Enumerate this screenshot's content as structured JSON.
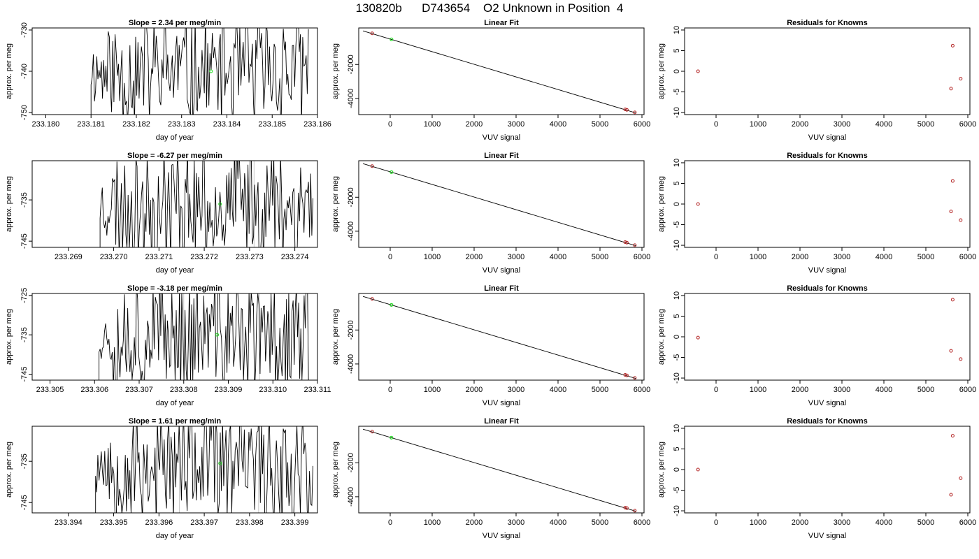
{
  "figure": {
    "title": "130820b      D743654    O2 Unknown in Position  4"
  },
  "colors": {
    "trace": "#000000",
    "fit_line": "#000000",
    "known_point": "#b22222",
    "unknown_point": "#22dd22",
    "ref_line": "#c8c8c8"
  },
  "chart_data": [
    {
      "type": "line",
      "row": 0,
      "col": 0,
      "title": "Slope =  2.34  per meg/min",
      "xlabel": "day of year",
      "ylabel": "approx. per meg",
      "xlim": [
        233.1797,
        233.186
      ],
      "ylim": [
        -750.5,
        -729.5
      ],
      "xticks": [
        233.18,
        233.181,
        233.182,
        233.183,
        233.184,
        233.185,
        233.186
      ],
      "xtick_labels": [
        "233.180",
        "233.181",
        "233.182",
        "233.183",
        "233.184",
        "233.185",
        "233.186"
      ],
      "yticks": [
        -730,
        -740,
        -750
      ],
      "ytick_labels": [
        "-730",
        "-740",
        "-750"
      ],
      "trace_start": 233.181,
      "trace_end": 233.1858,
      "trace_seed": 11,
      "trace_center": -740,
      "marker": {
        "x": 233.18365,
        "y": -740
      },
      "ref_lines": []
    },
    {
      "type": "scatter",
      "row": 0,
      "col": 1,
      "title": "Linear Fit",
      "xlabel": "VUV signal",
      "ylabel": "approx. per meg",
      "xlim": [
        -750,
        6050
      ],
      "ylim": [
        -4950,
        150
      ],
      "xticks": [
        0,
        1000,
        2000,
        3000,
        4000,
        5000,
        6000
      ],
      "xtick_labels": [
        "0",
        "1000",
        "2000",
        "3000",
        "4000",
        "5000",
        "6000"
      ],
      "yticks": [
        -2000,
        -4000
      ],
      "ytick_labels": [
        "-2000",
        "-4000"
      ],
      "fit_line": {
        "x": [
          -650,
          5850
        ],
        "y": [
          -20,
          -4850
        ]
      },
      "knowns": {
        "x": [
          -430,
          5600,
          5640,
          5830
        ],
        "y": [
          -170,
          -4640,
          -4670,
          -4820
        ]
      },
      "unknown": {
        "x": 30,
        "y": -520
      }
    },
    {
      "type": "scatter",
      "row": 0,
      "col": 2,
      "title": "Residuals for Knowns",
      "xlabel": "VUV signal",
      "ylabel": "approx. per meg",
      "xlim": [
        -750,
        6050
      ],
      "ylim": [
        -10.5,
        10.5
      ],
      "xticks": [
        0,
        1000,
        2000,
        3000,
        4000,
        5000,
        6000
      ],
      "xtick_labels": [
        "0",
        "1000",
        "2000",
        "3000",
        "4000",
        "5000",
        "6000"
      ],
      "yticks": [
        10,
        5,
        0,
        -5,
        -10
      ],
      "ytick_labels": [
        "10",
        "5",
        "0",
        "-5",
        "-10"
      ],
      "knowns": {
        "x": [
          -430,
          5600,
          5640,
          5830
        ],
        "y": [
          0,
          -4.2,
          6.2,
          -1.8
        ]
      }
    },
    {
      "type": "line",
      "row": 1,
      "col": 0,
      "title": "Slope =  -6.27  per meg/min",
      "xlabel": "day of year",
      "ylabel": "approx. per meg",
      "xlim": [
        233.2682,
        233.2745
      ],
      "ylim": [
        -746.5,
        -725.5
      ],
      "xticks": [
        233.269,
        233.27,
        233.271,
        233.272,
        233.273,
        233.274
      ],
      "xtick_labels": [
        "233.269",
        "233.270",
        "233.271",
        "233.272",
        "233.273",
        "233.274"
      ],
      "yticks": [
        -735,
        -745
      ],
      "ytick_labels": [
        "-735",
        "-745"
      ],
      "trace_start": 233.2697,
      "trace_end": 233.2744,
      "trace_seed": 23,
      "trace_center": -736,
      "marker": {
        "x": 233.27235,
        "y": -736
      },
      "ref_lines": [
        233.2731
      ]
    },
    {
      "type": "scatter",
      "row": 1,
      "col": 1,
      "title": "Linear Fit",
      "xlabel": "VUV signal",
      "ylabel": "approx. per meg",
      "xlim": [
        -750,
        6050
      ],
      "ylim": [
        -4950,
        150
      ],
      "xticks": [
        0,
        1000,
        2000,
        3000,
        4000,
        5000,
        6000
      ],
      "xtick_labels": [
        "0",
        "1000",
        "2000",
        "3000",
        "4000",
        "5000",
        "6000"
      ],
      "yticks": [
        -2000,
        -4000
      ],
      "ytick_labels": [
        "-2000",
        "-4000"
      ],
      "fit_line": {
        "x": [
          -650,
          5850
        ],
        "y": [
          -20,
          -4850
        ]
      },
      "knowns": {
        "x": [
          -430,
          5600,
          5640,
          5830
        ],
        "y": [
          -170,
          -4640,
          -4670,
          -4820
        ]
      },
      "unknown": {
        "x": 30,
        "y": -520
      }
    },
    {
      "type": "scatter",
      "row": 1,
      "col": 2,
      "title": "Residuals for Knowns",
      "xlabel": "VUV signal",
      "ylabel": "approx. per meg",
      "xlim": [
        -750,
        6050
      ],
      "ylim": [
        -10.5,
        10.5
      ],
      "xticks": [
        0,
        1000,
        2000,
        3000,
        4000,
        5000,
        6000
      ],
      "xtick_labels": [
        "0",
        "1000",
        "2000",
        "3000",
        "4000",
        "5000",
        "6000"
      ],
      "yticks": [
        10,
        5,
        0,
        -5,
        -10
      ],
      "ytick_labels": [
        "10",
        "5",
        "0",
        "-5",
        "-10"
      ],
      "knowns": {
        "x": [
          -430,
          5600,
          5640,
          5830
        ],
        "y": [
          0,
          -1.8,
          5.6,
          -3.9
        ]
      }
    },
    {
      "type": "line",
      "row": 2,
      "col": 0,
      "title": "Slope =  -3.18  per meg/min",
      "xlabel": "day of year",
      "ylabel": "approx. per meg",
      "xlim": [
        233.3046,
        233.311
      ],
      "ylim": [
        -746.5,
        -724.5
      ],
      "xticks": [
        233.305,
        233.306,
        233.307,
        233.308,
        233.309,
        233.31,
        233.311
      ],
      "xtick_labels": [
        "233.305",
        "233.306",
        "233.307",
        "233.308",
        "233.309",
        "233.310",
        "233.311"
      ],
      "yticks": [
        -725,
        -735,
        -745
      ],
      "ytick_labels": [
        "-725",
        "-735",
        "-745"
      ],
      "trace_start": 233.3061,
      "trace_end": 233.3108,
      "trace_seed": 37,
      "trace_center": -735,
      "marker": {
        "x": 233.30875,
        "y": -735
      },
      "ref_lines": [
        233.308,
        233.3097
      ]
    },
    {
      "type": "scatter",
      "row": 2,
      "col": 1,
      "title": "Linear Fit",
      "xlabel": "VUV signal",
      "ylabel": "approx. per meg",
      "xlim": [
        -750,
        6050
      ],
      "ylim": [
        -4950,
        150
      ],
      "xticks": [
        0,
        1000,
        2000,
        3000,
        4000,
        5000,
        6000
      ],
      "xtick_labels": [
        "0",
        "1000",
        "2000",
        "3000",
        "4000",
        "5000",
        "6000"
      ],
      "yticks": [
        -2000,
        -4000
      ],
      "ytick_labels": [
        "-2000",
        "-4000"
      ],
      "fit_line": {
        "x": [
          -650,
          5850
        ],
        "y": [
          -20,
          -4850
        ]
      },
      "knowns": {
        "x": [
          -430,
          5600,
          5640,
          5830
        ],
        "y": [
          -170,
          -4640,
          -4670,
          -4820
        ]
      },
      "unknown": {
        "x": 30,
        "y": -520
      }
    },
    {
      "type": "scatter",
      "row": 2,
      "col": 2,
      "title": "Residuals for Knowns",
      "xlabel": "VUV signal",
      "ylabel": "approx. per meg",
      "xlim": [
        -750,
        6050
      ],
      "ylim": [
        -10.5,
        10.5
      ],
      "xticks": [
        0,
        1000,
        2000,
        3000,
        4000,
        5000,
        6000
      ],
      "xtick_labels": [
        "0",
        "1000",
        "2000",
        "3000",
        "4000",
        "5000",
        "6000"
      ],
      "yticks": [
        10,
        5,
        0,
        -5,
        -10
      ],
      "ytick_labels": [
        "10",
        "5",
        "0",
        "-5",
        "-10"
      ],
      "knowns": {
        "x": [
          -430,
          5600,
          5640,
          5830
        ],
        "y": [
          -0.2,
          -3.4,
          9.0,
          -5.4
        ]
      }
    },
    {
      "type": "line",
      "row": 3,
      "col": 0,
      "title": "Slope =  1.61  per meg/min",
      "xlabel": "day of year",
      "ylabel": "approx. per meg",
      "xlim": [
        233.3932,
        233.3995
      ],
      "ylim": [
        -747.5,
        -726.5
      ],
      "xticks": [
        233.394,
        233.395,
        233.396,
        233.397,
        233.398,
        233.399
      ],
      "xtick_labels": [
        "233.394",
        "233.395",
        "233.396",
        "233.397",
        "233.398",
        "233.399"
      ],
      "yticks": [
        -735,
        -745
      ],
      "ytick_labels": [
        "-735",
        "-745"
      ],
      "trace_start": 233.3946,
      "trace_end": 233.3994,
      "trace_seed": 53,
      "trace_center": -736,
      "marker": {
        "x": 233.39735,
        "y": -735.5
      },
      "ref_lines": [
        233.39645,
        233.3982
      ]
    },
    {
      "type": "scatter",
      "row": 3,
      "col": 1,
      "title": "Linear Fit",
      "xlabel": "VUV signal",
      "ylabel": "approx. per meg",
      "xlim": [
        -750,
        6050
      ],
      "ylim": [
        -4950,
        150
      ],
      "xticks": [
        0,
        1000,
        2000,
        3000,
        4000,
        5000,
        6000
      ],
      "xtick_labels": [
        "0",
        "1000",
        "2000",
        "3000",
        "4000",
        "5000",
        "6000"
      ],
      "yticks": [
        -2000,
        -4000
      ],
      "ytick_labels": [
        "-2000",
        "-4000"
      ],
      "fit_line": {
        "x": [
          -650,
          5850
        ],
        "y": [
          -20,
          -4850
        ]
      },
      "knowns": {
        "x": [
          -430,
          5600,
          5640,
          5830
        ],
        "y": [
          -170,
          -4640,
          -4670,
          -4820
        ]
      },
      "unknown": {
        "x": 30,
        "y": -520
      }
    },
    {
      "type": "scatter",
      "row": 3,
      "col": 2,
      "title": "Residuals for Knowns",
      "xlabel": "VUV signal",
      "ylabel": "approx. per meg",
      "xlim": [
        -750,
        6050
      ],
      "ylim": [
        -10.5,
        10.5
      ],
      "xticks": [
        0,
        1000,
        2000,
        3000,
        4000,
        5000,
        6000
      ],
      "xtick_labels": [
        "0",
        "1000",
        "2000",
        "3000",
        "4000",
        "5000",
        "6000"
      ],
      "yticks": [
        10,
        5,
        0,
        -5,
        -10
      ],
      "ytick_labels": [
        "10",
        "5",
        "0",
        "-5",
        "-10"
      ],
      "knowns": {
        "x": [
          -430,
          5600,
          5640,
          5830
        ],
        "y": [
          0,
          -6.1,
          8.2,
          -2.1
        ]
      }
    }
  ]
}
